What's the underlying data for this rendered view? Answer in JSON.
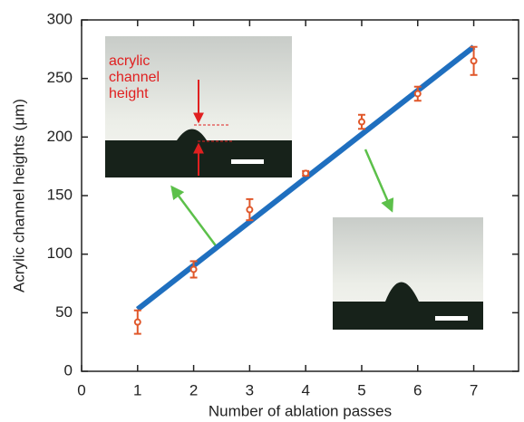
{
  "chart_data": {
    "type": "scatter",
    "x_label": "Number of ablation passes",
    "y_label": "Acrylic channel heights  (μm)",
    "xlim": [
      0,
      7.8
    ],
    "xticks": [
      0,
      1,
      2,
      3,
      4,
      5,
      6,
      7
    ],
    "ylim": [
      0,
      300
    ],
    "yticks": [
      0,
      50,
      100,
      150,
      200,
      250,
      300
    ],
    "points": {
      "color": "#e0572a",
      "x": [
        1,
        2,
        3,
        4,
        5,
        6,
        7
      ],
      "values": [
        42,
        87,
        138,
        169,
        213,
        237,
        265
      ],
      "errors": [
        10,
        7,
        9,
        2,
        6,
        6,
        12
      ]
    },
    "fit": {
      "color": "#1f6fbf",
      "x": [
        1,
        7
      ],
      "values": [
        53,
        277
      ]
    },
    "annotations": [
      "acrylic",
      "channel",
      "height"
    ]
  }
}
